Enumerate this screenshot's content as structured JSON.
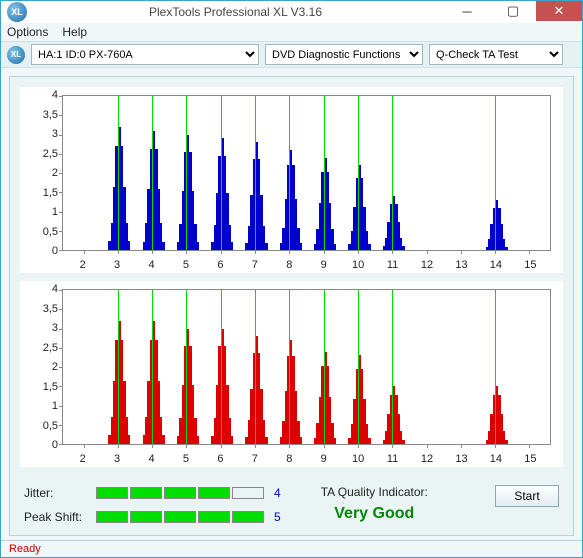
{
  "window": {
    "title": "PlexTools Professional XL V3.16",
    "icon_text": "XL"
  },
  "menu": {
    "options": "Options",
    "help": "Help"
  },
  "toolbar": {
    "drive": "HA:1 ID:0  PX-760A",
    "func": "DVD Diagnostic Functions",
    "test": "Q-Check TA Test"
  },
  "charts": {
    "ylim": [
      0,
      4
    ],
    "yticks": [
      0,
      0.5,
      1,
      1.5,
      2,
      2.5,
      3,
      3.5,
      4
    ],
    "yticklabels": [
      "0",
      "0,5",
      "1",
      "1,5",
      "2",
      "2,5",
      "3",
      "3,5",
      "4"
    ],
    "xlim": [
      1.4,
      15.6
    ],
    "xticks": [
      2,
      3,
      4,
      5,
      6,
      7,
      8,
      9,
      10,
      11,
      12,
      13,
      14,
      15
    ],
    "gridlines": [
      3,
      4,
      5,
      6,
      7,
      8,
      9,
      10,
      11,
      14
    ],
    "bar_width_data": 0.07,
    "top": {
      "color": "#0000cc",
      "clusters": [
        {
          "c": 3,
          "p": 3.2
        },
        {
          "c": 4,
          "p": 3.1
        },
        {
          "c": 5,
          "p": 3.0
        },
        {
          "c": 6,
          "p": 2.9
        },
        {
          "c": 7,
          "p": 2.8
        },
        {
          "c": 8,
          "p": 2.6
        },
        {
          "c": 9,
          "p": 2.4
        },
        {
          "c": 10,
          "p": 2.2
        },
        {
          "c": 11,
          "p": 1.4
        },
        {
          "c": 14,
          "p": 1.3
        }
      ]
    },
    "bottom": {
      "color": "#dd0000",
      "clusters": [
        {
          "c": 3,
          "p": 3.2
        },
        {
          "c": 4,
          "p": 3.2
        },
        {
          "c": 5,
          "p": 3.0
        },
        {
          "c": 6,
          "p": 3.0
        },
        {
          "c": 7,
          "p": 2.8
        },
        {
          "c": 8,
          "p": 2.7
        },
        {
          "c": 9,
          "p": 2.4
        },
        {
          "c": 10,
          "p": 2.3
        },
        {
          "c": 11,
          "p": 1.5
        },
        {
          "c": 14,
          "p": 1.5
        }
      ]
    }
  },
  "stats": {
    "jitter_label": "Jitter:",
    "jitter_val": "4",
    "jitter_filled": 4,
    "jitter_total": 5,
    "peak_label": "Peak Shift:",
    "peak_val": "5",
    "peak_filled": 5,
    "peak_total": 5,
    "quality_label": "TA Quality Indicator:",
    "quality_val": "Very Good",
    "quality_color": "#008800",
    "start": "Start"
  },
  "status": "Ready"
}
